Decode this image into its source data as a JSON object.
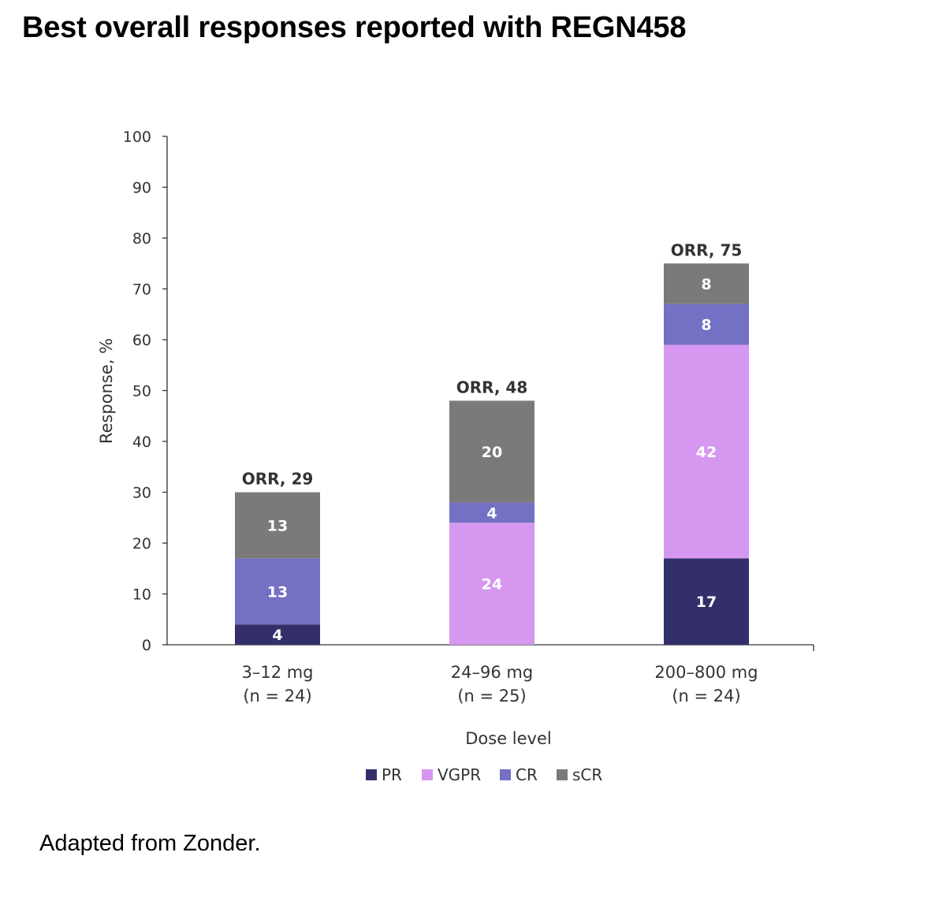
{
  "title": "Best overall responses reported with REGN458",
  "footnote": "Adapted from Zonder.",
  "chart_data": {
    "type": "bar",
    "stacked": true,
    "categories": [
      "3–12 mg",
      "24–96 mg",
      "200–800 mg"
    ],
    "category_sublabels": [
      "(n = 24)",
      "(n = 25)",
      "(n = 24)"
    ],
    "series": [
      {
        "name": "PR",
        "values": [
          4,
          0,
          17
        ],
        "color": "#332f6b"
      },
      {
        "name": "VGPR",
        "values": [
          0,
          24,
          42
        ],
        "color": "#d597ef"
      },
      {
        "name": "CR",
        "values": [
          13,
          4,
          8
        ],
        "color": "#7470c4"
      },
      {
        "name": "sCR",
        "values": [
          13,
          20,
          8
        ],
        "color": "#7a7a7a"
      }
    ],
    "totals": [
      "ORR, 29",
      "ORR, 48",
      "ORR, 75"
    ],
    "xlabel": "Dose level",
    "ylabel": "Response, %",
    "ylim": [
      0,
      100
    ],
    "yticks": [
      0,
      10,
      20,
      30,
      40,
      50,
      60,
      70,
      80,
      90,
      100
    ],
    "grid": false,
    "legend_position": "bottom"
  }
}
